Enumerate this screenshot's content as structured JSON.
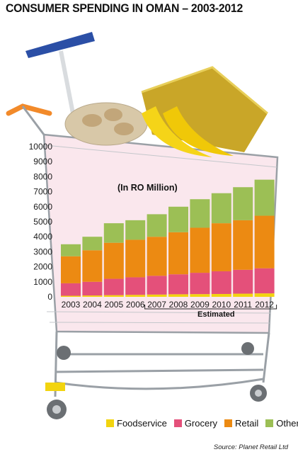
{
  "title": "CONSUMER SPENDING IN OMAN – 2003-2012",
  "source": "Source: Planet Retail Ltd",
  "colors": {
    "Foodservice": "#f2d40f",
    "Grocery": "#e4507a",
    "Retail": "#ec8a12",
    "Others": "#9cbf55",
    "basket": "#9aa0a6",
    "handle": "#2b4fa6",
    "cart_pink": "#f6d3de"
  },
  "icons": [
    "shopping-cart-icon",
    "brush-icon",
    "potatoes-icon",
    "bananas-icon",
    "gift-bag-icon"
  ],
  "chart_data": {
    "type": "bar",
    "stacked": true,
    "unit_label": "(In RO Million)",
    "estimated_label": "Estimated",
    "estimated_range": [
      "2007",
      "2012"
    ],
    "categories": [
      "2003",
      "2004",
      "2005",
      "2006",
      "2007",
      "2008",
      "2009",
      "2010",
      "2011",
      "2012"
    ],
    "series": [
      {
        "name": "Foodservice",
        "values": [
          70,
          90,
          110,
          130,
          150,
          170,
          180,
          190,
          210,
          230
        ]
      },
      {
        "name": "Grocery",
        "values": [
          830,
          910,
          1090,
          1170,
          1250,
          1330,
          1420,
          1510,
          1590,
          1670
        ]
      },
      {
        "name": "Retail",
        "values": [
          1800,
          2100,
          2400,
          2500,
          2600,
          2800,
          3000,
          3200,
          3300,
          3500
        ]
      },
      {
        "name": "Others",
        "values": [
          800,
          900,
          1300,
          1300,
          1500,
          1700,
          1900,
          2000,
          2200,
          2400
        ]
      }
    ],
    "y_ticks": [
      0,
      1000,
      2000,
      3000,
      4000,
      5000,
      6000,
      7000,
      8000,
      9000,
      10000
    ],
    "ylim": [
      0,
      10000
    ],
    "legend_position": "bottom",
    "grid": false
  }
}
